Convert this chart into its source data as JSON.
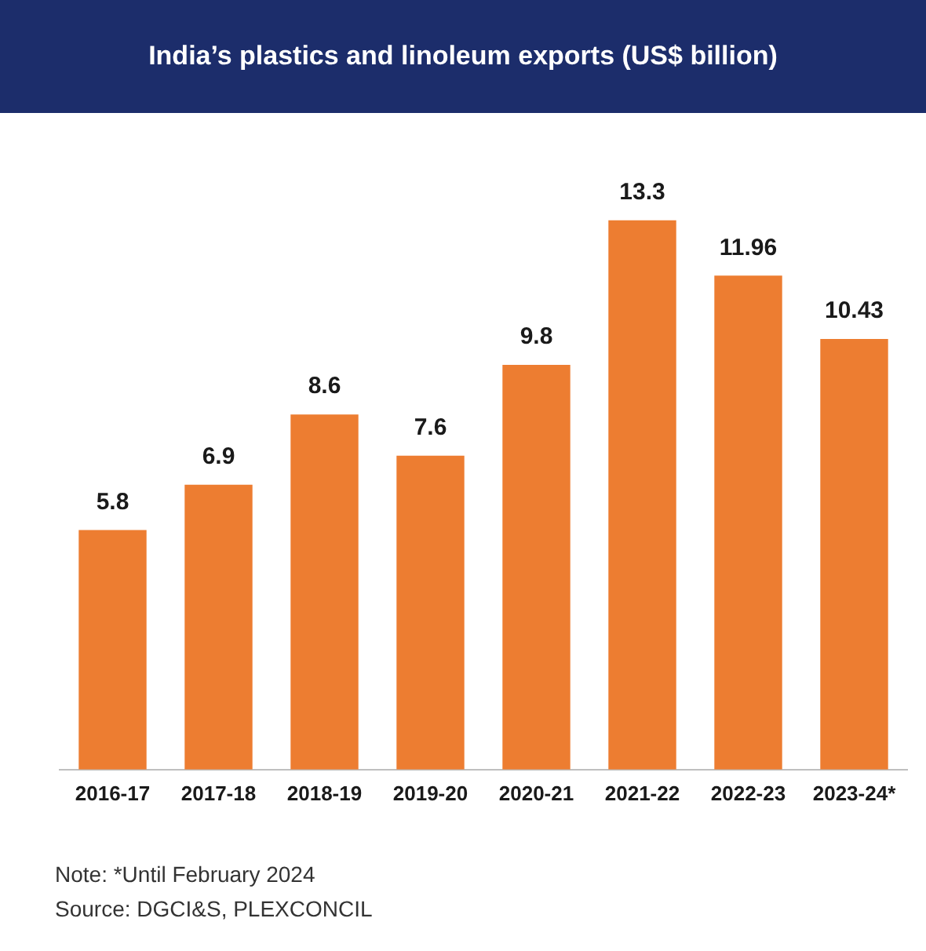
{
  "chart_data": {
    "type": "bar",
    "title": "India’s plastics and linoleum exports (US$ billion)",
    "categories": [
      "2016-17",
      "2017-18",
      "2018-19",
      "2019-20",
      "2020-21",
      "2021-22",
      "2022-23",
      "2023-24*"
    ],
    "values": [
      5.8,
      6.9,
      8.6,
      7.6,
      9.8,
      13.3,
      11.96,
      10.43
    ],
    "color": "#ed7d31",
    "data_labels": true,
    "value_labels": [
      "5.8",
      "6.9",
      "8.6",
      "7.6",
      "9.8",
      "13.3",
      "11.96",
      "10.43"
    ],
    "grid": false,
    "legend": false,
    "tick_labels": "x",
    "annotations": [
      "Note: *Until February 2024",
      "Source: DGCI&S, PLEXCONCIL"
    ]
  }
}
